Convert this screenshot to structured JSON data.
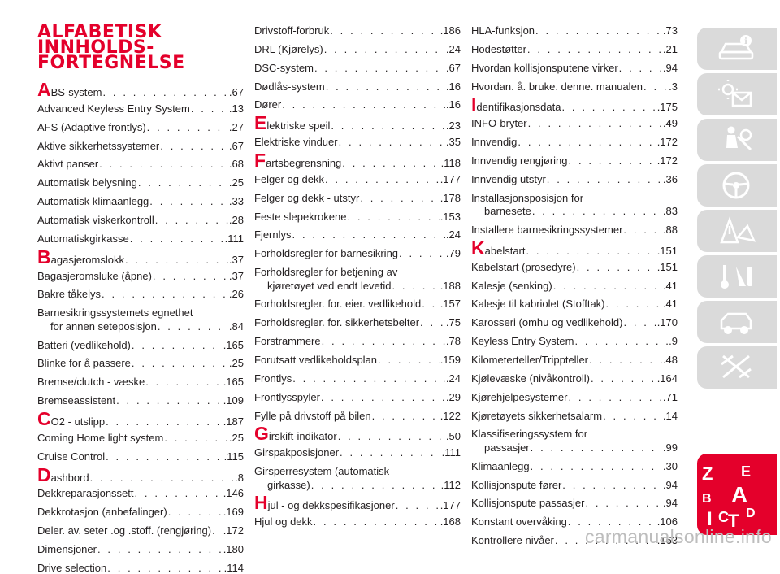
{
  "heading": [
    "ALFABETISK",
    "INNHOLDS-",
    "FORTEGNELSE"
  ],
  "columns": [
    [
      {
        "initial": "A",
        "label": "BS-system",
        "page": ".67"
      },
      {
        "label": "Advanced Keyless Entry System",
        "page": ".13"
      },
      {
        "label": "AFS (Adaptive frontlys)",
        "page": ".27"
      },
      {
        "label": "Aktive sikkerhetssystemer",
        "page": ".67"
      },
      {
        "label": "Aktivt panser",
        "page": ".68"
      },
      {
        "label": "Automatisk belysning",
        "page": ".25"
      },
      {
        "label": "Automatisk klimaanlegg",
        "page": ".33"
      },
      {
        "label": "Automatisk viskerkontroll",
        "page": ".28"
      },
      {
        "label": "Automatiskgirkasse",
        "page": ".111"
      },
      {
        "initial": "B",
        "label": "agasjeromslokk",
        "page": ".37"
      },
      {
        "label": "Bagasjeromsluke (åpne)",
        "page": ".37"
      },
      {
        "label": "Bakre tåkelys",
        "page": ".26"
      },
      {
        "label": "Barnesikringssystemets egnethet",
        "page": ""
      },
      {
        "label": "for annen seteposisjon",
        "page": ".84",
        "cont": true
      },
      {
        "label": "Batteri (vedlikehold)",
        "page": ".165"
      },
      {
        "label": "Blinke for å passere",
        "page": ".25"
      },
      {
        "label": "Bremse/clutch - væske",
        "page": ".165"
      },
      {
        "label": "Bremseassistent",
        "page": ".109"
      },
      {
        "initial": "C",
        "label": "O2 - utslipp",
        "page": ".187"
      },
      {
        "label": "Coming Home light system",
        "page": ".25"
      },
      {
        "label": "Cruise Control",
        "page": ".115"
      },
      {
        "initial": "D",
        "label": "ashbord",
        "page": ".8"
      },
      {
        "label": "Dekkreparasjonssett",
        "page": ".146"
      },
      {
        "label": "Dekkrotasjon (anbefalinger)",
        "page": ".169"
      },
      {
        "label": "Deler. av. seter .og .stoff. (rengjøring)",
        "page": ".172"
      },
      {
        "label": "Dimensjoner",
        "page": ".180"
      },
      {
        "label": "Drive selection",
        "page": ".114"
      }
    ],
    [
      {
        "label": "Drivstoff-forbruk",
        "page": ".186"
      },
      {
        "label": "DRL (Kjørelys)",
        "page": ".24"
      },
      {
        "label": "DSC-system",
        "page": ".67"
      },
      {
        "label": "Dødlås-system",
        "page": ".16"
      },
      {
        "label": "Dører",
        "page": ".16"
      },
      {
        "initial": "E",
        "label": "lektriske speil",
        "page": ".23"
      },
      {
        "label": "Elektriske vinduer",
        "page": ".35"
      },
      {
        "initial": "F",
        "label": "artsbegrensning",
        "page": ".118"
      },
      {
        "label": "Felger og dekk",
        "page": ".177"
      },
      {
        "label": "Felger og dekk - utstyr",
        "page": ".178"
      },
      {
        "label": "Feste slepekrokene",
        "page": ".153"
      },
      {
        "label": "Fjernlys",
        "page": ".24"
      },
      {
        "label": "Forholdsregler for barnesikring",
        "page": ".79"
      },
      {
        "label": "Forholdsregler for betjening av",
        "page": ""
      },
      {
        "label": "kjøretøyet ved endt levetid",
        "page": ".188",
        "cont": true
      },
      {
        "label": "Forholdsregler. for. eier. vedlikehold",
        "page": ".157"
      },
      {
        "label": "Forholdsregler. for. sikkerhetsbelter",
        "page": ".75"
      },
      {
        "label": "Forstrammere",
        "page": ".78"
      },
      {
        "label": "Forutsatt vedlikeholdsplan",
        "page": ".159"
      },
      {
        "label": "Frontlys",
        "page": ".24"
      },
      {
        "label": "Frontlysspyler",
        "page": ".29"
      },
      {
        "label": "Fylle på drivstoff på bilen",
        "page": ".122"
      },
      {
        "initial": "G",
        "label": "irskift-indikator",
        "page": ".50"
      },
      {
        "label": "Girspakposisjoner",
        "page": ".111"
      },
      {
        "label": "Girsperresystem (automatisk",
        "page": ""
      },
      {
        "label": "girkasse)",
        "page": ".112",
        "cont": true
      },
      {
        "initial": "H",
        "label": "jul - og dekkspesifikasjoner",
        "page": ".177"
      },
      {
        "label": "Hjul og dekk",
        "page": ".168"
      }
    ],
    [
      {
        "label": "HLA-funksjon",
        "page": ".73"
      },
      {
        "label": "Hodestøtter",
        "page": ".21"
      },
      {
        "label": "Hvordan kollisjonsputene virker",
        "page": ".94"
      },
      {
        "label": "Hvordan. å. bruke. denne. manualen",
        "page": ".3"
      },
      {
        "initial": "I",
        "label": "dentifikasjonsdata",
        "page": ".175"
      },
      {
        "label": "INFO-bryter",
        "page": ".49"
      },
      {
        "label": "Innvendig",
        "page": ".172"
      },
      {
        "label": "Innvendig rengjøring",
        "page": ".172"
      },
      {
        "label": "Innvendig utstyr",
        "page": ".36"
      },
      {
        "label": "Installasjonsposisjon for",
        "page": ""
      },
      {
        "label": "barnesete",
        "page": ".83",
        "cont": true
      },
      {
        "label": "Installere barnesikringssystemer",
        "page": ".88"
      },
      {
        "initial": "K",
        "label": "abelstart",
        "page": ".151"
      },
      {
        "label": "Kabelstart (prosedyre)",
        "page": ".151"
      },
      {
        "label": "Kalesje (senking)",
        "page": ".41"
      },
      {
        "label": "Kalesje til kabriolet (Stofftak)",
        "page": ".41"
      },
      {
        "label": "Karosseri (omhu og vedlikehold)",
        "page": ".170"
      },
      {
        "label": "Keyless Entry System",
        "page": ".9"
      },
      {
        "label": "Kilometerteller/Trippteller",
        "page": ".48"
      },
      {
        "label": "Kjølevæske (nivåkontroll)",
        "page": ".164"
      },
      {
        "label": "Kjørehjelpesystemer",
        "page": ".71"
      },
      {
        "label": "Kjøretøyets sikkerhetsalarm",
        "page": ".14"
      },
      {
        "label": "Klassifiseringssystem for",
        "page": ""
      },
      {
        "label": "passasjer",
        "page": ".99",
        "cont": true
      },
      {
        "label": "Klimaanlegg",
        "page": ".30"
      },
      {
        "label": "Kollisjonspute fører",
        "page": ".94"
      },
      {
        "label": "Kollisjonspute passasjer",
        "page": ".94"
      },
      {
        "label": "Konstant overvåking",
        "page": ".106"
      },
      {
        "label": "Kontrollere nivåer",
        "page": ".163"
      }
    ]
  ],
  "sidebar_icons": [
    "car-info-icon",
    "dashboard-warning-icon",
    "safety-airbag-icon",
    "steering-wheel-icon",
    "road-warning-icon",
    "service-tools-icon",
    "specifications-icon",
    "multimedia-icon",
    "index-icon"
  ],
  "index_badge": {
    "letters": [
      "Z",
      "E",
      "B",
      "A",
      "I",
      "C",
      "T",
      "D"
    ]
  },
  "watermark": "carmanualsonline.info",
  "colors": {
    "accent": "#e4002b",
    "tab": "#dadada"
  }
}
